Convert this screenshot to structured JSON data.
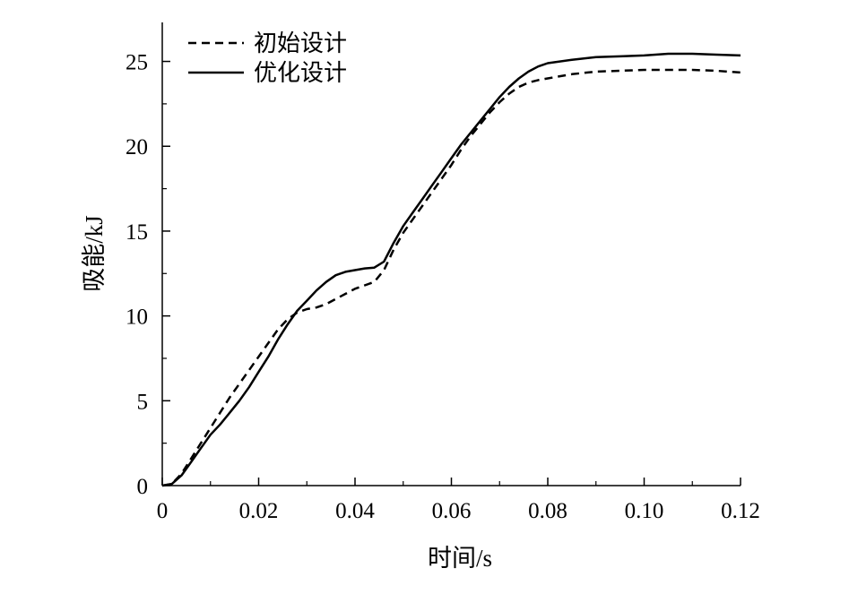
{
  "chart_data": {
    "type": "line",
    "title": "",
    "xlabel": "时间/s",
    "ylabel": "吸能/kJ",
    "xlim": [
      0,
      0.12
    ],
    "ylim": [
      0,
      27.3
    ],
    "xticks": [
      0,
      0.02,
      0.04,
      0.06,
      0.08,
      0.1,
      0.12
    ],
    "xtick_labels": [
      "0",
      "0.02",
      "0.04",
      "0.06",
      "0.08",
      "0.10",
      "0.12"
    ],
    "yticks": [
      0,
      5,
      10,
      15,
      20,
      25
    ],
    "ytick_labels": [
      "0",
      "5",
      "10",
      "15",
      "20",
      "25"
    ],
    "grid": false,
    "legend_position": "top-left",
    "series": [
      {
        "name": "初始设计",
        "style": "dashed",
        "color": "#000000",
        "x": [
          0,
          0.002,
          0.004,
          0.006,
          0.008,
          0.01,
          0.012,
          0.014,
          0.016,
          0.018,
          0.02,
          0.022,
          0.024,
          0.026,
          0.028,
          0.03,
          0.032,
          0.034,
          0.036,
          0.038,
          0.04,
          0.042,
          0.044,
          0.046,
          0.048,
          0.05,
          0.052,
          0.054,
          0.056,
          0.058,
          0.06,
          0.062,
          0.064,
          0.066,
          0.068,
          0.07,
          0.072,
          0.074,
          0.076,
          0.078,
          0.08,
          0.085,
          0.09,
          0.095,
          0.1,
          0.105,
          0.11,
          0.115,
          0.12
        ],
        "y": [
          0,
          0.1,
          0.7,
          1.6,
          2.5,
          3.4,
          4.3,
          5.2,
          6.0,
          6.8,
          7.6,
          8.4,
          9.2,
          9.8,
          10.2,
          10.4,
          10.5,
          10.7,
          11.0,
          11.3,
          11.6,
          11.8,
          12.0,
          12.7,
          13.9,
          14.9,
          15.7,
          16.5,
          17.3,
          18.1,
          18.9,
          19.8,
          20.6,
          21.3,
          22.0,
          22.6,
          23.1,
          23.5,
          23.75,
          23.9,
          24.0,
          24.25,
          24.4,
          24.45,
          24.5,
          24.5,
          24.5,
          24.45,
          24.35
        ]
      },
      {
        "name": "优化设计",
        "style": "solid",
        "color": "#000000",
        "x": [
          0,
          0.002,
          0.004,
          0.006,
          0.008,
          0.01,
          0.012,
          0.014,
          0.016,
          0.018,
          0.02,
          0.022,
          0.024,
          0.026,
          0.028,
          0.03,
          0.032,
          0.034,
          0.036,
          0.038,
          0.04,
          0.042,
          0.044,
          0.046,
          0.048,
          0.05,
          0.052,
          0.054,
          0.056,
          0.058,
          0.06,
          0.062,
          0.064,
          0.066,
          0.068,
          0.07,
          0.072,
          0.074,
          0.076,
          0.078,
          0.08,
          0.085,
          0.09,
          0.095,
          0.1,
          0.105,
          0.11,
          0.115,
          0.12
        ],
        "y": [
          0,
          0.1,
          0.6,
          1.4,
          2.2,
          3.0,
          3.6,
          4.3,
          5.0,
          5.8,
          6.7,
          7.6,
          8.6,
          9.5,
          10.3,
          10.9,
          11.5,
          12.0,
          12.4,
          12.6,
          12.7,
          12.8,
          12.85,
          13.2,
          14.3,
          15.3,
          16.1,
          16.9,
          17.7,
          18.5,
          19.3,
          20.1,
          20.8,
          21.5,
          22.2,
          22.9,
          23.5,
          24.0,
          24.4,
          24.7,
          24.9,
          25.1,
          25.25,
          25.3,
          25.35,
          25.45,
          25.45,
          25.4,
          25.35
        ]
      }
    ]
  }
}
